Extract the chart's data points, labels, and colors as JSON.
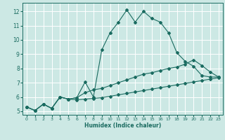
{
  "title": "",
  "xlabel": "Humidex (Indice chaleur)",
  "ylabel": "",
  "background_color": "#cce8e4",
  "grid_color": "#b0d8d4",
  "line_color": "#1a6b60",
  "xlim": [
    -0.5,
    23.5
  ],
  "ylim": [
    4.75,
    12.6
  ],
  "xticks": [
    0,
    1,
    2,
    3,
    4,
    5,
    6,
    7,
    8,
    9,
    10,
    11,
    12,
    13,
    14,
    15,
    16,
    17,
    18,
    19,
    20,
    21,
    22,
    23
  ],
  "yticks": [
    5,
    6,
    7,
    8,
    9,
    10,
    11,
    12
  ],
  "curve1_x": [
    0,
    1,
    2,
    3,
    4,
    5,
    6,
    7,
    8,
    9,
    10,
    11,
    12,
    13,
    14,
    15,
    16,
    17,
    18,
    19,
    20,
    21,
    22,
    23
  ],
  "curve1_y": [
    5.3,
    5.05,
    5.5,
    5.2,
    6.0,
    5.85,
    5.95,
    7.05,
    6.0,
    9.3,
    10.5,
    11.25,
    12.1,
    11.25,
    12.0,
    11.5,
    11.25,
    10.5,
    9.1,
    8.5,
    8.15,
    7.5,
    7.4,
    7.4
  ],
  "curve2_x": [
    0,
    1,
    2,
    3,
    4,
    5,
    6,
    7,
    8,
    9,
    10,
    11,
    12,
    13,
    14,
    15,
    16,
    17,
    18,
    19,
    20,
    21,
    22,
    23
  ],
  "curve2_y": [
    5.3,
    5.05,
    5.5,
    5.2,
    6.0,
    5.85,
    5.95,
    6.3,
    6.5,
    6.6,
    6.8,
    7.0,
    7.2,
    7.4,
    7.6,
    7.7,
    7.85,
    8.0,
    8.1,
    8.3,
    8.6,
    8.2,
    7.75,
    7.4
  ],
  "curve3_x": [
    0,
    1,
    2,
    3,
    4,
    5,
    6,
    7,
    8,
    9,
    10,
    11,
    12,
    13,
    14,
    15,
    16,
    17,
    18,
    19,
    20,
    21,
    22,
    23
  ],
  "curve3_y": [
    5.3,
    5.05,
    5.5,
    5.2,
    6.0,
    5.85,
    5.8,
    5.85,
    5.9,
    5.95,
    6.05,
    6.15,
    6.25,
    6.35,
    6.45,
    6.55,
    6.65,
    6.75,
    6.85,
    6.95,
    7.05,
    7.15,
    7.25,
    7.35
  ]
}
